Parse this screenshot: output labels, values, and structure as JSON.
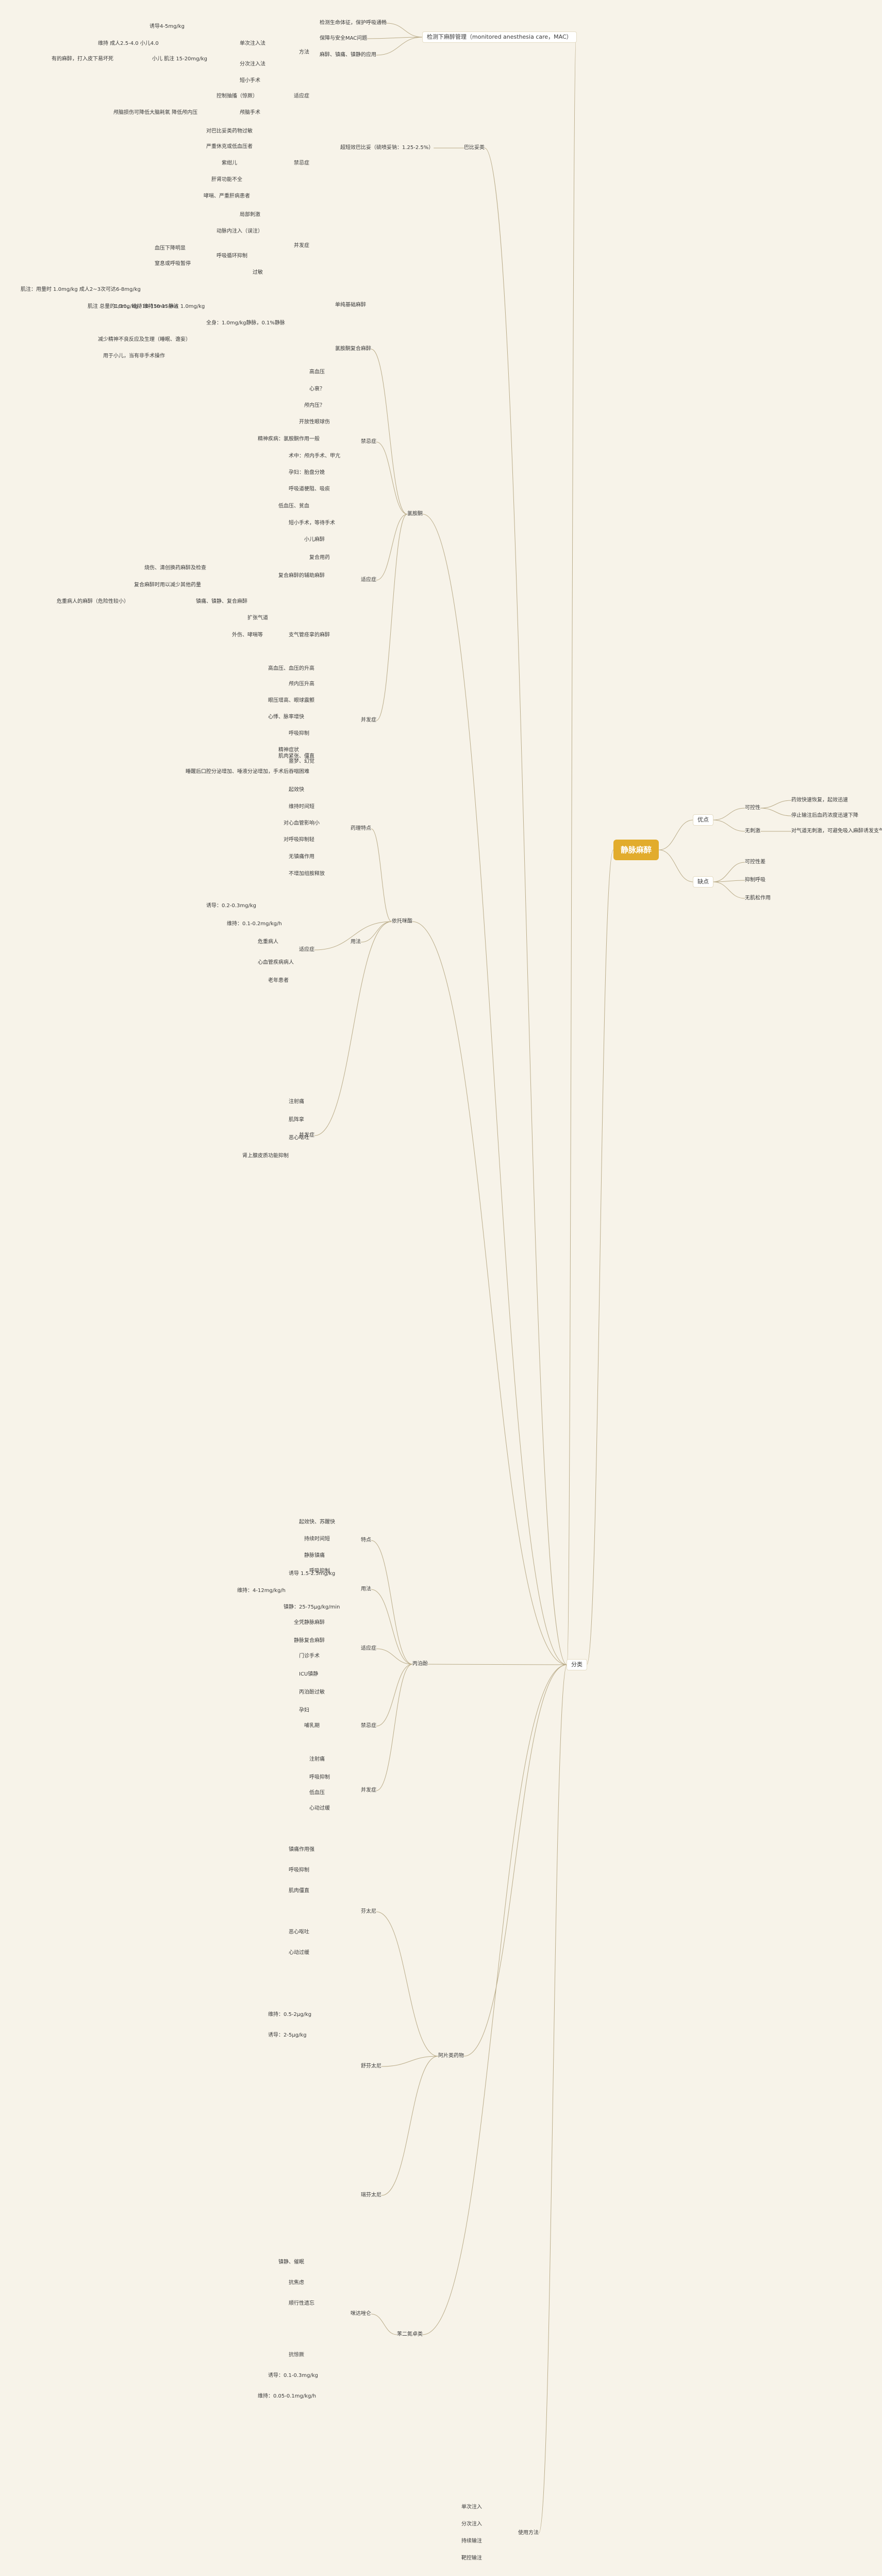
{
  "root": "静脉麻醉",
  "branches": {
    "pros_cons": {
      "label": "优点",
      "cons_label": "缺点"
    },
    "pros": {
      "a": "可控性",
      "a1": "药效快速恢复，起效迅速",
      "a2": "停止输注后血药浓度迅速下降",
      "b": "无刺激",
      "b1": "对气道无刺激，可避免吸入麻醉诱发支气管痉挛"
    },
    "cons": {
      "a": "可控性差",
      "b": "抑制呼吸",
      "c": "无肌松作用"
    },
    "classify": "分类",
    "mac": {
      "label": "检测下麻醉管理（monitored anesthesia care，MAC）",
      "a": "检测生命体征，保护呼吸通畅",
      "b": "保障与安全MAC问题",
      "c": "麻醉、镇痛、镇静的应用"
    },
    "dissociative": {
      "label": "巴比妥类",
      "sub": "超短效巴比妥（硫喷妥钠：1.25-2.5%）"
    },
    "thiopental": {
      "method": "方法",
      "m1": "诱导4-5mg/kg",
      "m2": "维持 成人2.5-4.0 小儿4.0",
      "m3": "单次注入法",
      "m4": "分次注入法",
      "m5": "小儿 肌注 15-20mg/kg",
      "m6": "有的麻醉，打入皮下易坏死",
      "ind": "适应症",
      "ind1": "短小手术",
      "ind2": "控制抽搐（惊厥）",
      "ind3": "颅脑手术",
      "ind4": "颅脑损伤可降低大脑耗氧 降低颅内压",
      "contra": "禁忌症",
      "contra1": "对巴比妥类药物过敏",
      "contra2": "严重休克或低血压者",
      "contra3": "紫绀儿",
      "contra4": "肝肾功能不全",
      "contra5": "哮喘、严重肝病患者",
      "comp": "并发症",
      "comp1": "局部刺激",
      "comp2": "动脉内注入（误注）",
      "comp3": "呼吸循环抑制",
      "comp4": "血压下降明显",
      "comp5": "窒息或呼吸暂停",
      "comp6": "过敏"
    },
    "basic": {
      "label": "单纯基础麻醉",
      "a": "肌注：用量时 1.0mg/kg 成人2~3次可达6-8mg/kg",
      "b": "1.0mg/kg，维持10-15min",
      "c": "肌注 总量的1/10，维持10-15min 静注 1.0mg/kg",
      "d": "全身：1.0mg/kg静脉，0.1%静脉",
      "e": "减少精神不良反应及生理（睡眠、谵妄）",
      "f": "用于小儿，当有非手术操作"
    },
    "ketamine": {
      "label": "氯胺酮",
      "dose_title": "氯胺酮复合麻醉",
      "contra": "禁忌症",
      "contra_items": [
        "高血压",
        "心衰？",
        "颅内压？",
        "开放性眼球伤",
        "精神疾病：氯胺酮作用一般",
        "术中：颅内手术、甲亢",
        "孕妇：胎盘分娩",
        "呼吸道梗阻、吸痰",
        "低血压、贫血",
        "短小手术，等待手术"
      ],
      "ind": "适应症",
      "ind_items": [
        "小儿麻醉",
        "复合用药",
        "复合麻醉的辅助麻醉",
        "镇痛、镇静、复合麻醉",
        "扩张气道",
        "外伤、哮喘等",
        "支气管痉挛的麻醉"
      ],
      "ind_notes": [
        "烧伤、清创换药麻醉及检查",
        "复合麻醉时用以减少其他药量",
        "危重病人的麻醉（危险性较小）"
      ],
      "comp": "并发症",
      "comp_items": [
        "高血压、血压的升高",
        "颅内压升高",
        "眼压增高、眼球震颤",
        "心悸、脉率增快",
        "呼吸抑制",
        "精神症状",
        "肌肉紧张、僵直",
        "噩梦、幻觉"
      ],
      "comp_note": "睡醒后口腔分泌增加、唾液分泌增加，手术后吞咽困难"
    },
    "etomidate": {
      "label": "依托咪酯",
      "ind": "适应症",
      "ind_items": [
        "危重病人",
        "心血管疾病病人",
        "老年患者"
      ],
      "props": "药理特点",
      "prop_items": [
        "起效快",
        "维持时间短",
        "对心血管影响小",
        "对呼吸抑制轻",
        "无镇痛作用",
        "不增加组胺释放"
      ],
      "usage": "用法",
      "usage_items": [
        "诱导：0.2-0.3mg/kg",
        "维持：0.1-0.2mg/kg/h"
      ],
      "comp": "并发症",
      "comp_items": [
        "注射痛",
        "肌阵挛",
        "恶心呕吐",
        "肾上腺皮质功能抑制"
      ]
    },
    "propofol": {
      "label": "丙泊酚",
      "props": "特点",
      "prop_items": [
        "起效快、苏醒快",
        "持续时间短",
        "静脉镇痛",
        "呼吸抑制"
      ],
      "usage": "用法",
      "usage_items": [
        "诱导 1.5-2.5mg/kg",
        "维持：4-12mg/kg/h",
        "镇静：25-75μg/kg/min"
      ],
      "ind": "适应症",
      "ind_items": [
        "全凭静脉麻醉",
        "静脉复合麻醉",
        "门诊手术",
        "ICU镇静"
      ],
      "contra": "禁忌症",
      "contra_items": [
        "丙泊酚过敏",
        "孕妇",
        "哺乳期"
      ],
      "comp": "并发症",
      "comp_items": [
        "注射痛",
        "呼吸抑制",
        "低血压",
        "心动过缓"
      ]
    },
    "opioid": {
      "label": "阿片类药物",
      "sub1": "芬太尼",
      "sub2": "舒芬太尼",
      "sub3": "瑞芬太尼",
      "items": [
        "镇痛作用强",
        "呼吸抑制",
        "肌肉僵直",
        "恶心呕吐",
        "心动过缓",
        "维持：0.5-2μg/kg",
        "诱导：2-5μg/kg"
      ]
    },
    "benzo": {
      "label": "苯二氮卓类",
      "sub": "咪达唑仑",
      "items": [
        "镇静、催眠",
        "抗焦虑",
        "顺行性遗忘",
        "抗惊厥",
        "诱导：0.1-0.3mg/kg",
        "维持：0.05-0.1mg/kg/h"
      ]
    },
    "usage": {
      "label": "使用方法",
      "items": [
        "单次注入",
        "分次注入",
        "持续输注",
        "靶控输注"
      ]
    }
  }
}
